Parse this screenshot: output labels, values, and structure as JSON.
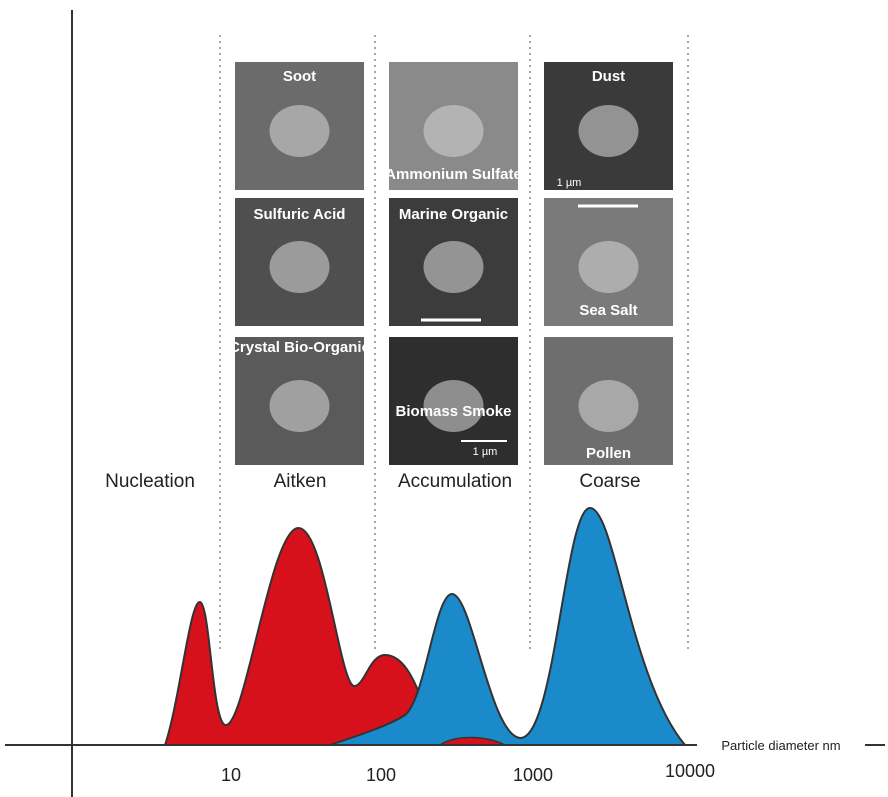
{
  "modes": [
    "Nucleation",
    "Aitken",
    "Accumulation",
    "Coarse"
  ],
  "axis": {
    "label": "Particle diameter nm",
    "ticks": [
      "10",
      "100",
      "1000",
      "10000"
    ]
  },
  "panels": [
    [
      "Soot",
      "Ammonium Sulfate",
      "Dust"
    ],
    [
      "Sulfuric Acid",
      "Marine Organic",
      "Sea Salt"
    ],
    [
      "Crystal Bio-Organic",
      "Biomass Smoke",
      "Pollen"
    ]
  ],
  "scale_labels": {
    "dust": "1 µm",
    "biomass": "1 µm"
  }
}
